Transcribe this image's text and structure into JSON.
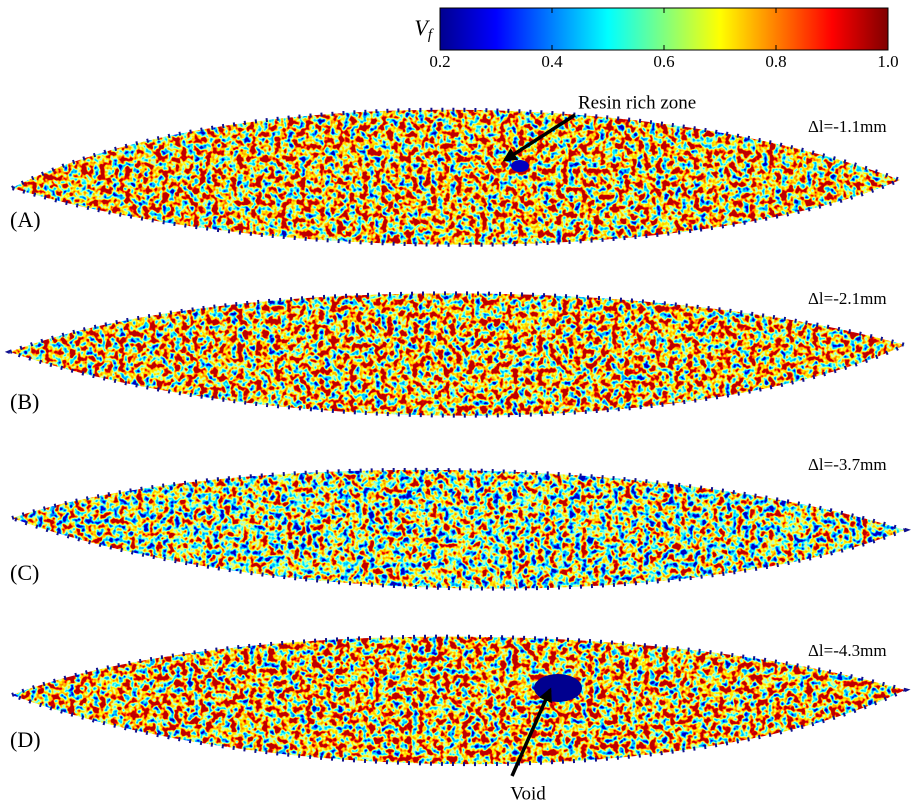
{
  "colorbar": {
    "label": "V",
    "label_sub": "f",
    "range": [
      0.2,
      1.0
    ],
    "ticks": [
      0.2,
      0.4,
      0.6,
      0.8,
      {
        "value": 1.0,
        "label": "1.0"
      }
    ]
  },
  "panels": [
    {
      "label": "(A)",
      "delta": "Δl=-1.1mm"
    },
    {
      "label": "(B)",
      "delta": "Δl=-2.1mm"
    },
    {
      "label": "(C)",
      "delta": "Δl=-3.7mm"
    },
    {
      "label": "(D)",
      "delta": "Δl=-4.3mm"
    }
  ],
  "annotations": {
    "resin": "Resin rich zone",
    "void": "Void"
  }
}
